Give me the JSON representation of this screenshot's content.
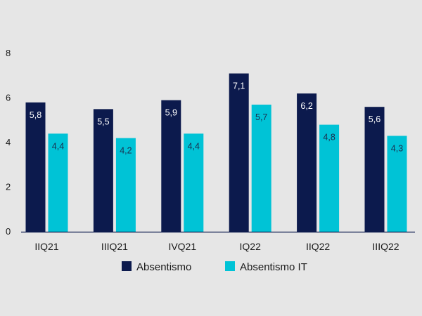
{
  "chart_data": {
    "type": "bar",
    "categories": [
      "IIQ21",
      "IIIQ21",
      "IVQ21",
      "IQ22",
      "IIQ22",
      "IIIQ22"
    ],
    "series": [
      {
        "name": "Absentismo",
        "color": "#0c1a4d",
        "values": [
          5.8,
          5.5,
          5.9,
          7.1,
          6.2,
          5.6
        ],
        "labels": [
          "5,8",
          "5,5",
          "5,9",
          "7,1",
          "6,2",
          "5,6"
        ],
        "label_color": "#ffffff"
      },
      {
        "name": "Absentismo IT",
        "color": "#00c3d6",
        "values": [
          4.4,
          4.2,
          4.4,
          5.7,
          4.8,
          4.3
        ],
        "labels": [
          "4,4",
          "4,2",
          "4,4",
          "5,7",
          "4,8",
          "4,3"
        ],
        "label_color": "#1a3050"
      }
    ],
    "yticks": [
      0,
      2,
      4,
      6,
      8
    ],
    "ylim": [
      0,
      8
    ],
    "grid": false,
    "legend_position": "bottom-center",
    "title": "",
    "xlabel": "",
    "ylabel": ""
  }
}
